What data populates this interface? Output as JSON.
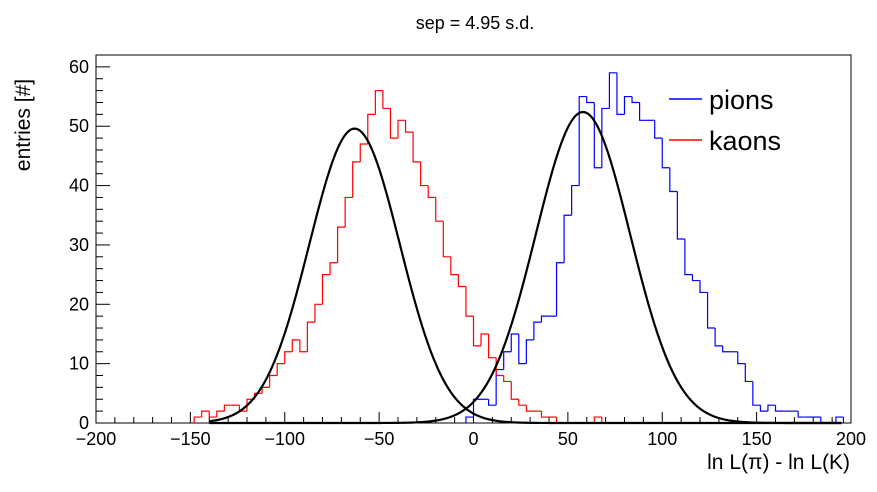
{
  "chart_data": {
    "type": "histogram",
    "title": "sep = 4.95 s.d.",
    "xlabel": "ln L(π) - ln L(K)",
    "ylabel": "entries [#]",
    "xlim": [
      -200,
      200
    ],
    "ylim": [
      0,
      62
    ],
    "x_ticks": [
      -200,
      -150,
      -100,
      -50,
      0,
      50,
      100,
      150,
      200
    ],
    "y_ticks": [
      0,
      10,
      20,
      30,
      40,
      50,
      60
    ],
    "x_tick_labels": [
      "−200",
      "−150",
      "−100",
      "−50",
      "0",
      "50",
      "100",
      "150",
      "200"
    ],
    "y_tick_labels": [
      "0",
      "10",
      "20",
      "30",
      "40",
      "50",
      "60"
    ],
    "bin_width": 4,
    "grid": false,
    "legend_position": "top-right",
    "series": [
      {
        "name": "pions",
        "color": "#0000ff",
        "bin_start": -4,
        "counts": [
          1,
          4,
          4,
          3,
          9,
          12,
          15,
          10,
          14,
          17,
          18,
          18,
          27,
          35,
          40,
          55,
          54,
          43,
          53,
          59,
          52,
          55,
          54,
          51,
          51,
          48,
          43,
          39,
          31,
          25,
          24,
          22,
          16,
          13,
          12,
          12,
          10,
          7,
          3,
          2,
          3,
          2,
          2,
          2,
          1,
          1,
          1,
          0,
          0,
          1
        ]
      },
      {
        "name": "kaons",
        "color": "#ff0000",
        "bin_start": -148,
        "counts": [
          1,
          2,
          1,
          2,
          3,
          3,
          2,
          4,
          5,
          6,
          8,
          10,
          12,
          14,
          12,
          17,
          20,
          25,
          27,
          33,
          38,
          44,
          47,
          52,
          56,
          53,
          48,
          51,
          49,
          44,
          40,
          38,
          34,
          28,
          25,
          23,
          18,
          13,
          15,
          11,
          8,
          7,
          4,
          3,
          2,
          2,
          1,
          1,
          0,
          0,
          0,
          0,
          0,
          1
        ]
      }
    ],
    "fits": [
      {
        "name": "pions-fit",
        "color": "#000000",
        "amplitude": 52.4,
        "mean": 58,
        "sigma": 25
      },
      {
        "name": "kaons-fit",
        "color": "#000000",
        "amplitude": 49.6,
        "mean": -63,
        "sigma": 24
      }
    ]
  }
}
